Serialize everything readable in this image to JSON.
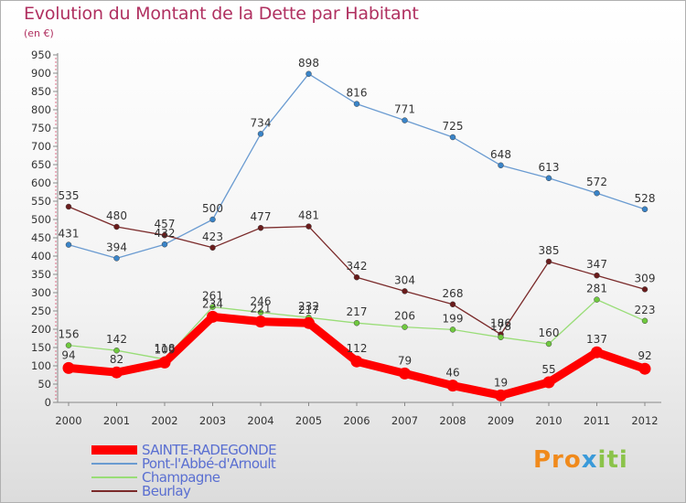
{
  "title": "Evolution du Montant de la Dette par Habitant",
  "subtitle": "(en €)",
  "logo": {
    "text": "Proxiti",
    "colors": [
      "#f08a1c",
      "#3a9ad9",
      "#8bc34a"
    ]
  },
  "chart_data": {
    "type": "line",
    "x": [
      "2000",
      "2001",
      "2002",
      "2003",
      "2004",
      "2005",
      "2006",
      "2007",
      "2008",
      "2009",
      "2010",
      "2011",
      "2012"
    ],
    "ylim": [
      0,
      950
    ],
    "yticks": [
      0,
      50,
      100,
      150,
      200,
      250,
      300,
      350,
      400,
      450,
      500,
      550,
      600,
      650,
      700,
      750,
      800,
      850,
      900,
      950
    ],
    "grid": false,
    "legend_position": "bottom-left",
    "series": [
      {
        "name": "SAINTE-RADEGONDE",
        "color": "#ff0000",
        "bold": true,
        "values": [
          94,
          82,
          109,
          234,
          221,
          217,
          112,
          79,
          46,
          19,
          55,
          137,
          92
        ]
      },
      {
        "name": "Pont-l'Abbé-d'Arnoult",
        "color": "#6a9bd1",
        "bold": false,
        "values": [
          431,
          394,
          432,
          500,
          734,
          898,
          816,
          771,
          725,
          648,
          613,
          572,
          528
        ]
      },
      {
        "name": "Champagne",
        "color": "#99dd77",
        "bold": false,
        "values": [
          156,
          142,
          118,
          261,
          246,
          232,
          217,
          206,
          199,
          178,
          160,
          281,
          223
        ]
      },
      {
        "name": "Beurlay",
        "color": "#7a2a2a",
        "bold": false,
        "values": [
          535,
          480,
          457,
          423,
          477,
          481,
          342,
          304,
          268,
          186,
          385,
          347,
          309
        ]
      }
    ]
  }
}
